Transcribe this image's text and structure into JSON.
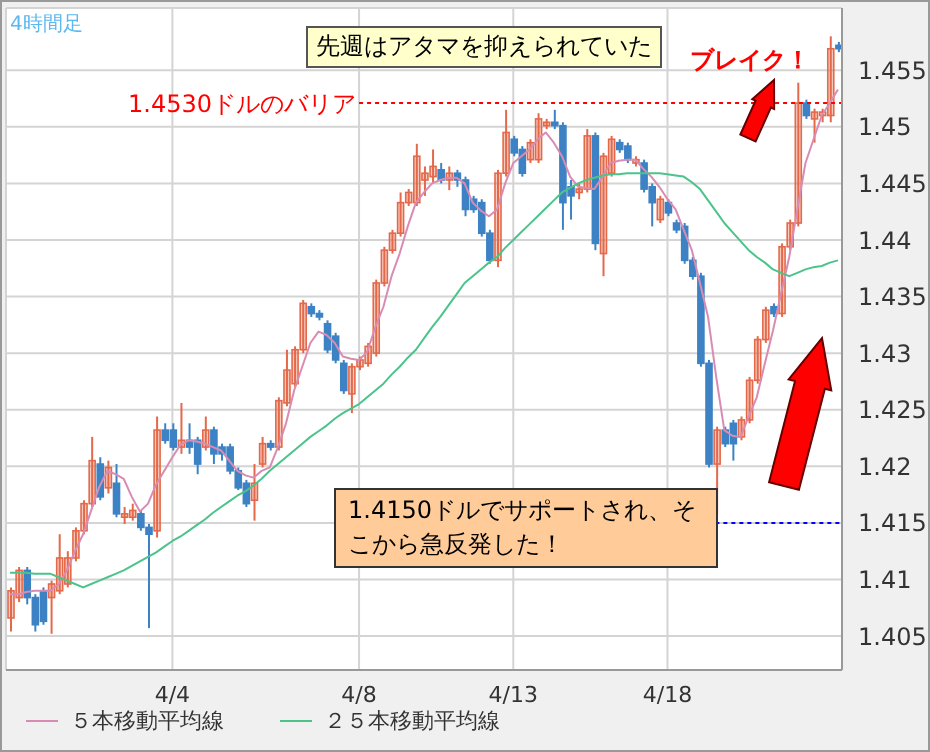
{
  "chart_data": {
    "type": "candlestick",
    "categories": [
      null,
      null,
      null,
      null,
      null,
      null,
      null,
      null,
      null,
      null,
      null,
      null,
      null,
      null,
      null,
      null,
      null,
      null,
      null,
      null,
      "4/4",
      null,
      null,
      null,
      null,
      null,
      null,
      null,
      null,
      null,
      null,
      null,
      null,
      null,
      null,
      null,
      null,
      null,
      null,
      null,
      null,
      null,
      null,
      "4/8",
      null,
      null,
      null,
      null,
      null,
      null,
      null,
      null,
      null,
      null,
      null,
      null,
      null,
      null,
      null,
      null,
      null,
      null,
      "4/13",
      null,
      null,
      null,
      null,
      null,
      null,
      null,
      null,
      null,
      null,
      null,
      null,
      null,
      null,
      null,
      null,
      null,
      null,
      "4/18",
      null,
      null,
      null,
      null,
      null,
      null,
      null,
      null,
      null,
      null,
      null,
      null,
      null,
      null,
      null,
      null,
      null,
      null,
      null,
      null,
      null
    ],
    "series": [
      {
        "ohlc": [
          [
            1.4066,
            1.4093,
            1.4054,
            1.409
          ],
          [
            1.4084,
            1.4111,
            1.408,
            1.4108
          ],
          [
            1.4108,
            1.4111,
            1.4078,
            1.4084
          ],
          [
            1.4084,
            1.4087,
            1.4054,
            1.406
          ],
          [
            1.409,
            1.4093,
            1.406,
            1.4063
          ],
          [
            1.4084,
            1.4099,
            1.4052,
            1.4096
          ],
          [
            1.409,
            1.414,
            1.4087,
            1.4119
          ],
          [
            1.4096,
            1.4125,
            1.4093,
            1.4119
          ],
          [
            1.4119,
            1.4146,
            1.4116,
            1.4143
          ],
          [
            1.4143,
            1.417,
            1.414,
            1.4167
          ],
          [
            1.4167,
            1.4226,
            1.4164,
            1.4205
          ],
          [
            1.4202,
            1.4208,
            1.417,
            1.4173
          ],
          [
            1.4181,
            1.4205,
            1.4176,
            1.4199
          ],
          [
            1.4185,
            1.4202,
            1.4155,
            1.4158
          ],
          [
            1.4155,
            1.4164,
            1.4149,
            1.4158
          ],
          [
            1.4155,
            1.4167,
            1.4152,
            1.4161
          ],
          [
            1.4158,
            1.4161,
            1.4143,
            1.4146
          ],
          [
            1.4146,
            1.4149,
            1.4057,
            1.414
          ],
          [
            1.4143,
            1.4244,
            1.4137,
            1.4232
          ],
          [
            1.4232,
            1.4238,
            1.422,
            1.4223
          ],
          [
            1.4232,
            1.4238,
            1.4214,
            1.4217
          ],
          [
            1.4217,
            1.4256,
            1.4211,
            1.4223
          ],
          [
            1.4223,
            1.4238,
            1.4211,
            1.4217
          ],
          [
            1.4223,
            1.4226,
            1.4193,
            1.4202
          ],
          [
            1.4217,
            1.4244,
            1.4214,
            1.4232
          ],
          [
            1.4232,
            1.4235,
            1.4202,
            1.4211
          ],
          [
            1.4217,
            1.422,
            1.4205,
            1.4211
          ],
          [
            1.4217,
            1.422,
            1.4193,
            1.4196
          ],
          [
            1.4196,
            1.4199,
            1.4179,
            1.4181
          ],
          [
            1.4185,
            1.4188,
            1.4164,
            1.4167
          ],
          [
            1.417,
            1.4202,
            1.4152,
            1.4185
          ],
          [
            1.4202,
            1.4226,
            1.4199,
            1.422
          ],
          [
            1.422,
            1.4223,
            1.4214,
            1.4217
          ],
          [
            1.4217,
            1.4261,
            1.4214,
            1.4258
          ],
          [
            1.4256,
            1.4303,
            1.4253,
            1.4285
          ],
          [
            1.4273,
            1.4306,
            1.427,
            1.4303
          ],
          [
            1.4303,
            1.4347,
            1.43,
            1.4344
          ],
          [
            1.4341,
            1.4344,
            1.4332,
            1.4335
          ],
          [
            1.4335,
            1.4338,
            1.4329,
            1.4332
          ],
          [
            1.4326,
            1.4329,
            1.43,
            1.4303
          ],
          [
            1.4315,
            1.4318,
            1.4291,
            1.4294
          ],
          [
            1.4291,
            1.4294,
            1.4264,
            1.4267
          ],
          [
            1.4264,
            1.4291,
            1.4247,
            1.4288
          ],
          [
            1.4288,
            1.4297,
            1.4285,
            1.4294
          ],
          [
            1.4291,
            1.4309,
            1.4288,
            1.4306
          ],
          [
            1.43,
            1.4365,
            1.4297,
            1.4362
          ],
          [
            1.4362,
            1.4394,
            1.4359,
            1.4391
          ],
          [
            1.4391,
            1.4409,
            1.4388,
            1.4406
          ],
          [
            1.4406,
            1.4442,
            1.4403,
            1.4433
          ],
          [
            1.4433,
            1.4445,
            1.443,
            1.4442
          ],
          [
            1.4433,
            1.4485,
            1.443,
            1.4474
          ],
          [
            1.4453,
            1.4465,
            1.4439,
            1.4459
          ],
          [
            1.4456,
            1.448,
            1.445,
            1.4465
          ],
          [
            1.4462,
            1.4468,
            1.445,
            1.4453
          ],
          [
            1.4453,
            1.4465,
            1.4444,
            1.4459
          ],
          [
            1.4459,
            1.4462,
            1.4447,
            1.4453
          ],
          [
            1.4453,
            1.4456,
            1.4421,
            1.4427
          ],
          [
            1.4436,
            1.4439,
            1.4424,
            1.4427
          ],
          [
            1.4433,
            1.4436,
            1.4403,
            1.4406
          ],
          [
            1.4406,
            1.4409,
            1.4379,
            1.4382
          ],
          [
            1.4382,
            1.4462,
            1.4376,
            1.4459
          ],
          [
            1.4459,
            1.4515,
            1.4456,
            1.4495
          ],
          [
            1.4489,
            1.4492,
            1.4474,
            1.4477
          ],
          [
            1.448,
            1.4483,
            1.4456,
            1.4459
          ],
          [
            1.4471,
            1.4489,
            1.4468,
            1.4486
          ],
          [
            1.4471,
            1.4512,
            1.4468,
            1.4507
          ],
          [
            1.4501,
            1.4507,
            1.4498,
            1.4504
          ],
          [
            1.4504,
            1.4515,
            1.4498,
            1.4501
          ],
          [
            1.4501,
            1.4504,
            1.4409,
            1.4433
          ],
          [
            1.4447,
            1.4453,
            1.4418,
            1.4439
          ],
          [
            1.4442,
            1.445,
            1.4436,
            1.4445
          ],
          [
            1.4445,
            1.4498,
            1.4442,
            1.4492
          ],
          [
            1.4492,
            1.4495,
            1.4391,
            1.4397
          ],
          [
            1.4388,
            1.4477,
            1.4368,
            1.4474
          ],
          [
            1.4459,
            1.4492,
            1.4456,
            1.4489
          ],
          [
            1.4486,
            1.4489,
            1.4477,
            1.448
          ],
          [
            1.4483,
            1.4486,
            1.4468,
            1.4471
          ],
          [
            1.4468,
            1.4474,
            1.4465,
            1.4471
          ],
          [
            1.4468,
            1.4471,
            1.4442,
            1.4445
          ],
          [
            1.4447,
            1.445,
            1.4412,
            1.4433
          ],
          [
            1.4418,
            1.4439,
            1.4415,
            1.4436
          ],
          [
            1.4433,
            1.4436,
            1.4421,
            1.4424
          ],
          [
            1.4415,
            1.4418,
            1.4406,
            1.4409
          ],
          [
            1.4412,
            1.4415,
            1.4379,
            1.4382
          ],
          [
            1.4382,
            1.4385,
            1.4365,
            1.4368
          ],
          [
            1.4368,
            1.4371,
            1.4288,
            1.4291
          ],
          [
            1.4291,
            1.4294,
            1.4199,
            1.4202
          ],
          [
            1.4202,
            1.4235,
            1.4158,
            1.4232
          ],
          [
            1.4232,
            1.4235,
            1.4217,
            1.422
          ],
          [
            1.4238,
            1.4241,
            1.4205,
            1.422
          ],
          [
            1.4226,
            1.4244,
            1.4223,
            1.4241
          ],
          [
            1.4241,
            1.4279,
            1.4238,
            1.4276
          ],
          [
            1.4276,
            1.4315,
            1.4273,
            1.4312
          ],
          [
            1.4312,
            1.4341,
            1.4309,
            1.4338
          ],
          [
            1.4341,
            1.4344,
            1.4332,
            1.4335
          ],
          [
            1.4335,
            1.4397,
            1.4332,
            1.4394
          ],
          [
            1.4394,
            1.4418,
            1.4391,
            1.4415
          ],
          [
            1.4415,
            1.4539,
            1.4412,
            1.4521
          ],
          [
            1.4521,
            1.4524,
            1.4507,
            1.451
          ],
          [
            1.4507,
            1.4516,
            1.4486,
            1.4513
          ],
          [
            1.451,
            1.4516,
            1.4504,
            1.4513
          ],
          [
            1.451,
            1.458,
            1.4504,
            1.4569
          ],
          [
            1.4572,
            1.4575,
            1.4566,
            1.4569
          ]
        ],
        "colors": [
          "#e4694a",
          "#e4694a",
          "#3c82c4",
          "#3c82c4",
          "#3c82c4",
          "#e4694a",
          "#e4694a",
          "#e4694a",
          "#e4694a",
          "#e4694a",
          "#e4694a",
          "#3c82c4",
          "#e4694a",
          "#3c82c4",
          "#e4694a",
          "#e4694a",
          "#3c82c4",
          "#3c82c4",
          "#e4694a",
          "#3c82c4",
          "#3c82c4",
          "#e4694a",
          "#3c82c4",
          "#3c82c4",
          "#e4694a",
          "#3c82c4",
          "#3c82c4",
          "#3c82c4",
          "#3c82c4",
          "#3c82c4",
          "#e4694a",
          "#e4694a",
          "#3c82c4",
          "#e4694a",
          "#e4694a",
          "#e4694a",
          "#e4694a",
          "#3c82c4",
          "#3c82c4",
          "#3c82c4",
          "#3c82c4",
          "#3c82c4",
          "#e4694a",
          "#e4694a",
          "#e4694a",
          "#e4694a",
          "#e4694a",
          "#e4694a",
          "#e4694a",
          "#e4694a",
          "#e4694a",
          "#e4694a",
          "#e4694a",
          "#3c82c4",
          "#e4694a",
          "#3c82c4",
          "#3c82c4",
          "#3c82c4",
          "#3c82c4",
          "#3c82c4",
          "#e4694a",
          "#e4694a",
          "#3c82c4",
          "#3c82c4",
          "#e4694a",
          "#e4694a",
          "#e4694a",
          "#3c82c4",
          "#3c82c4",
          "#3c82c4",
          "#e4694a",
          "#e4694a",
          "#3c82c4",
          "#e4694a",
          "#e4694a",
          "#3c82c4",
          "#3c82c4",
          "#e4694a",
          "#3c82c4",
          "#3c82c4",
          "#e4694a",
          "#3c82c4",
          "#3c82c4",
          "#3c82c4",
          "#3c82c4",
          "#3c82c4",
          "#3c82c4",
          "#e4694a",
          "#3c82c4",
          "#3c82c4",
          "#e4694a",
          "#e4694a",
          "#e4694a",
          "#e4694a",
          "#3c82c4",
          "#e4694a",
          "#e4694a",
          "#e4694a",
          "#3c82c4",
          "#e4694a",
          "#e4694a",
          "#e4694a",
          "#3c82c4"
        ]
      },
      {
        "type": "line",
        "name": "５本移動平均線",
        "color": "#d98cb3",
        "values": [
          1.4087,
          1.4087,
          1.4089,
          1.409,
          1.409,
          1.409,
          1.4096,
          1.4108,
          1.4125,
          1.414,
          1.4161,
          1.4182,
          1.4196,
          1.4193,
          1.4189,
          1.4173,
          1.416,
          1.4167,
          1.4184,
          1.4196,
          1.4208,
          1.4219,
          1.4223,
          1.4222,
          1.422,
          1.4217,
          1.4214,
          1.4205,
          1.4196,
          1.4192,
          1.419,
          1.4196,
          1.4199,
          1.4217,
          1.4238,
          1.4267,
          1.4288,
          1.4309,
          1.4319,
          1.4316,
          1.4309,
          1.4297,
          1.4295,
          1.4294,
          1.4301,
          1.4323,
          1.4341,
          1.4368,
          1.4388,
          1.4412,
          1.4433,
          1.4442,
          1.445,
          1.4453,
          1.4455,
          1.4455,
          1.445,
          1.4433,
          1.4426,
          1.4421,
          1.4427,
          1.445,
          1.4468,
          1.4474,
          1.448,
          1.4489,
          1.4495,
          1.4486,
          1.4474,
          1.4456,
          1.4447,
          1.4446,
          1.4445,
          1.4456,
          1.4468,
          1.447,
          1.4471,
          1.4471,
          1.4463,
          1.4456,
          1.4447,
          1.4436,
          1.4427,
          1.4409,
          1.4391,
          1.4362,
          1.4332,
          1.4279,
          1.4232,
          1.4227,
          1.4226,
          1.4244,
          1.4261,
          1.4291,
          1.432,
          1.4353,
          1.4385,
          1.4427,
          1.4468,
          1.4489,
          1.451,
          1.4521,
          1.4533
        ]
      },
      {
        "type": "line",
        "name": "２５本移動平均線",
        "color": "#4cc38a",
        "values": [
          1.4106,
          1.4106,
          1.4106,
          1.4105,
          1.4105,
          1.4105,
          1.4102,
          1.4099,
          1.4096,
          1.4093,
          1.4096,
          1.4099,
          1.4102,
          1.4105,
          1.4108,
          1.4112,
          1.4116,
          1.412,
          1.4124,
          1.4129,
          1.4134,
          1.4138,
          1.4143,
          1.4148,
          1.4153,
          1.4159,
          1.4164,
          1.4169,
          1.4174,
          1.4178,
          1.4183,
          1.4189,
          1.4196,
          1.4202,
          1.4208,
          1.4214,
          1.422,
          1.4226,
          1.4231,
          1.4236,
          1.4242,
          1.4247,
          1.4251,
          1.4255,
          1.4261,
          1.4267,
          1.4273,
          1.4281,
          1.4288,
          1.4296,
          1.4303,
          1.4313,
          1.4323,
          1.4332,
          1.4342,
          1.4352,
          1.4362,
          1.4368,
          1.4374,
          1.438,
          1.4385,
          1.4393,
          1.44,
          1.4407,
          1.4414,
          1.4421,
          1.4428,
          1.4435,
          1.4442,
          1.4446,
          1.445,
          1.4453,
          1.4455,
          1.4457,
          1.4458,
          1.4458,
          1.4459,
          1.4459,
          1.4459,
          1.4459,
          1.4459,
          1.4458,
          1.4457,
          1.4456,
          1.4451,
          1.4445,
          1.4435,
          1.4425,
          1.4415,
          1.4407,
          1.4399,
          1.4391,
          1.4385,
          1.438,
          1.4374,
          1.4371,
          1.4368,
          1.4371,
          1.4374,
          1.4376,
          1.4377,
          1.438,
          1.4382
        ]
      }
    ],
    "ylim": [
      1.402,
      1.4605
    ],
    "yticks": [
      1.405,
      1.41,
      1.415,
      1.42,
      1.425,
      1.43,
      1.435,
      1.44,
      1.445,
      1.45,
      1.455
    ],
    "grid": true,
    "legend": "bottom left",
    "marker": "none",
    "ref_lines": [
      {
        "axis": "y",
        "value": 1.4521,
        "label": "1.4530ドルのバリア",
        "color": "#ff0000",
        "line_style": "dotted"
      },
      {
        "axis": "y",
        "value": 1.415,
        "label": null,
        "color": "#0000ff",
        "line_style": "dotted"
      }
    ],
    "annotations": [
      "4時間足",
      "先週はアタマを抑えられていた",
      "ブレイク！",
      "1.4150ドルでサポートされ、そこから急反発した！"
    ]
  }
}
